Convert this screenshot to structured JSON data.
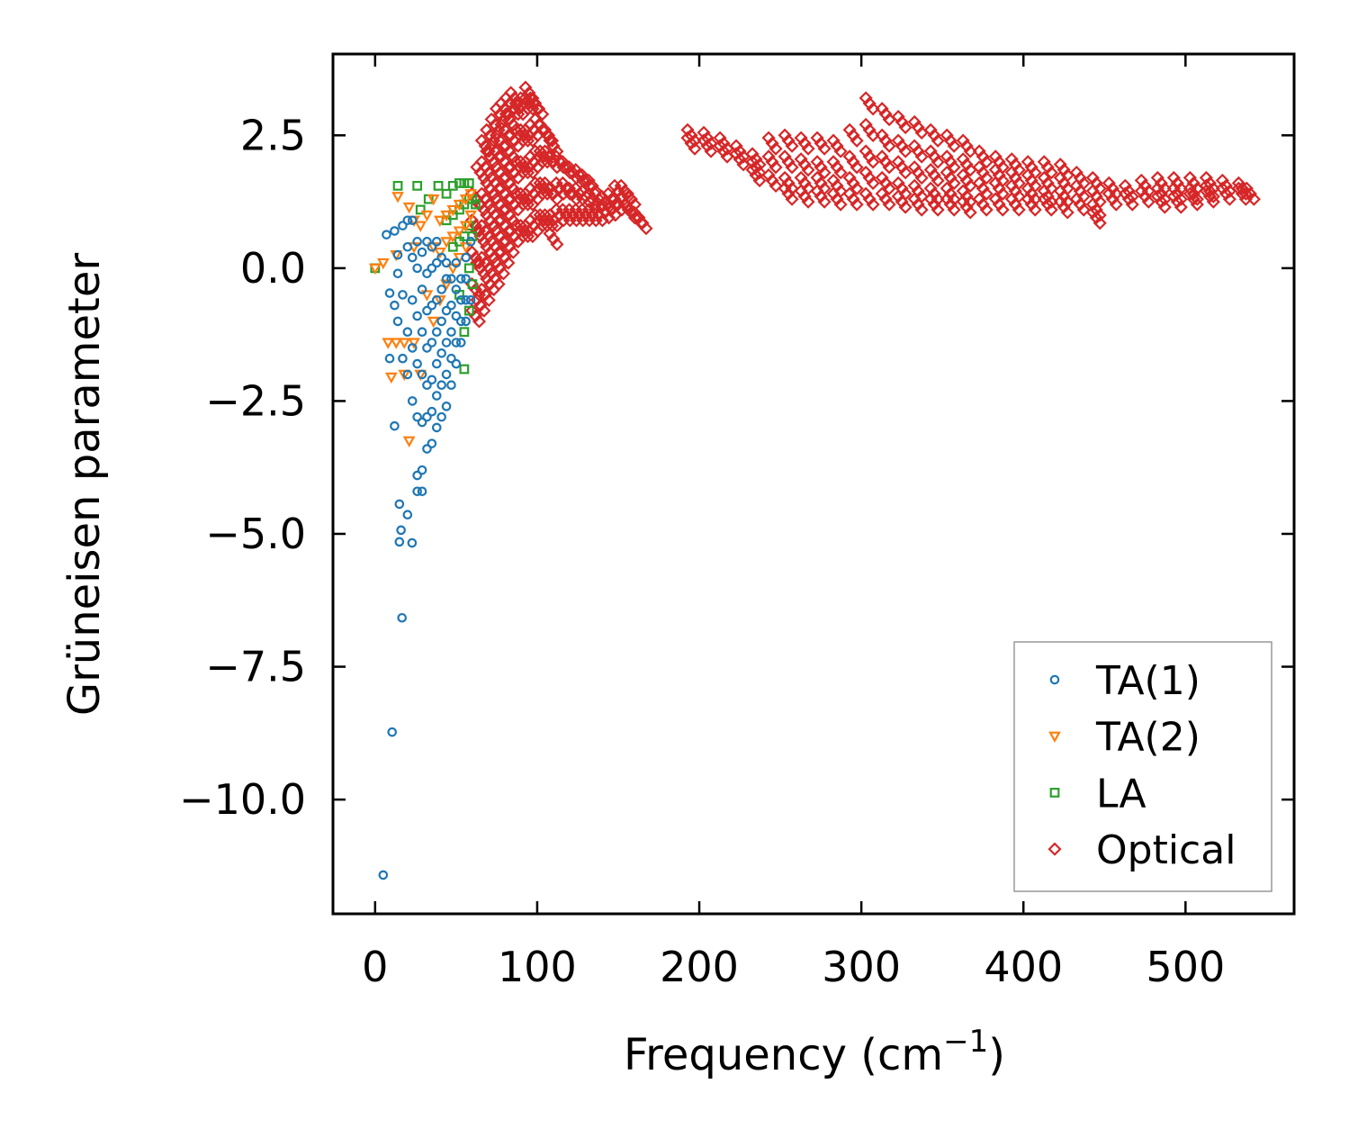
{
  "chart_data": {
    "type": "scatter",
    "title": "",
    "xlabel": "Frequency (cm",
    "xlabel_sup": "−1",
    "xlabel_end": ")",
    "ylabel": "Grüneisen parameter",
    "xlim": [
      -26,
      567
    ],
    "ylim": [
      -12.15,
      4.03
    ],
    "xticks": [
      0,
      100,
      200,
      300,
      400,
      500
    ],
    "xtick_labels": [
      "0",
      "100",
      "200",
      "300",
      "400",
      "500"
    ],
    "yticks": [
      2.5,
      0,
      -2.5,
      -5,
      -7.5,
      -10
    ],
    "ytick_labels": [
      "2.5",
      "0.0",
      "−2.5",
      "−5.0",
      "−7.5",
      "−10.0"
    ],
    "grid": false,
    "legend_placement": "lower-right",
    "series": [
      {
        "name": "TA(1)",
        "marker": "circle",
        "color": "#1f77b4",
        "groups": [
          [
            5,
            [
              -11.42
            ]
          ],
          [
            10.5,
            [
              -8.73
            ]
          ],
          [
            16.6,
            [
              -6.58
            ]
          ],
          [
            15,
            [
              -5.15,
              -4.44
            ]
          ],
          [
            16,
            [
              -4.93
            ]
          ],
          [
            20,
            [
              -4.64
            ]
          ],
          [
            22.8,
            [
              -5.17
            ]
          ],
          [
            7,
            [
              0.63
            ]
          ],
          [
            9,
            [
              -0.47,
              -1.7
            ]
          ],
          [
            12,
            [
              -2.97,
              0.7,
              -0.7
            ]
          ],
          [
            14,
            [
              -1.0,
              0.25,
              -0.1
            ]
          ],
          [
            17,
            [
              -1.7,
              -0.5,
              0.8
            ]
          ],
          [
            20,
            [
              -2.0,
              -1.2,
              0.4,
              0.9
            ]
          ],
          [
            23,
            [
              -2.5,
              -1.5,
              -0.6,
              0.2,
              0.9
            ]
          ],
          [
            26,
            [
              -4.2,
              -3.9,
              -2.8,
              -1.8,
              -0.9,
              0,
              0.5
            ]
          ],
          [
            29,
            [
              -4.2,
              -3.8,
              -2.9,
              -2.0,
              -1.2,
              -0.4,
              0.3
            ]
          ],
          [
            32,
            [
              -3.4,
              -2.8,
              -2.2,
              -1.5,
              -0.8,
              -0.1,
              0.5
            ]
          ],
          [
            35,
            [
              -3.3,
              -2.7,
              -2.1,
              -1.4,
              -0.7,
              0,
              0.4
            ]
          ],
          [
            38,
            [
              -3.0,
              -2.4,
              -1.8,
              -1.2,
              -0.6,
              0.1,
              0.5
            ]
          ],
          [
            41,
            [
              -2.8,
              -2.2,
              -1.6,
              -1.0,
              -0.4,
              0.2
            ]
          ],
          [
            44,
            [
              -2.6,
              -2.0,
              -1.4,
              -0.8,
              -0.2,
              0.1
            ]
          ],
          [
            47,
            [
              -2.2,
              -1.7,
              -1.2,
              -0.7,
              -0.2
            ]
          ],
          [
            50,
            [
              -1.8,
              -1.4,
              -0.9,
              -0.4,
              0.1
            ]
          ],
          [
            53,
            [
              -1.4,
              -1.0,
              -0.6,
              -0.2
            ]
          ],
          [
            56,
            [
              -1.0,
              -0.6,
              -0.2,
              0.2
            ]
          ],
          [
            59,
            [
              -0.6,
              0.5
            ]
          ]
        ]
      },
      {
        "name": "TA(2)",
        "marker": "triangle_down",
        "color": "#ff7f0e",
        "groups": [
          [
            0,
            [
              0
            ]
          ],
          [
            5,
            [
              0.1
            ]
          ],
          [
            8,
            [
              -1.4
            ]
          ],
          [
            10,
            [
              -2.05
            ]
          ],
          [
            13,
            [
              -1.4,
              0.25
            ]
          ],
          [
            14,
            [
              1.35
            ]
          ],
          [
            18,
            [
              -1.4,
              -2.0
            ]
          ],
          [
            21,
            [
              1.15,
              -3.25
            ]
          ],
          [
            24,
            [
              -1.4,
              0.4,
              0.9
            ]
          ],
          [
            28,
            [
              -2.0,
              0.8
            ]
          ],
          [
            32,
            [
              -0.5,
              1.0
            ]
          ],
          [
            36,
            [
              1.3,
              -1.0,
              0.4
            ]
          ],
          [
            40,
            [
              0.3,
              0.9,
              -0.6
            ]
          ],
          [
            44,
            [
              0.5,
              1.0,
              -0.3
            ]
          ],
          [
            48,
            [
              0.6,
              1.1,
              0.0
            ]
          ],
          [
            52,
            [
              0.7,
              1.2,
              0.2
            ]
          ],
          [
            56,
            [
              0.8,
              1.3,
              0.4
            ]
          ],
          [
            59,
            [
              1.0,
              1.4
            ]
          ]
        ]
      },
      {
        "name": "LA",
        "marker": "square",
        "color": "#2ca02c",
        "groups": [
          [
            0,
            [
              0
            ]
          ],
          [
            14,
            [
              1.55
            ]
          ],
          [
            26,
            [
              1.55
            ]
          ],
          [
            28,
            [
              1.1
            ]
          ],
          [
            33,
            [
              1.3
            ]
          ],
          [
            39,
            [
              1.55
            ]
          ],
          [
            44,
            [
              1.4,
              0.9
            ]
          ],
          [
            48,
            [
              1.55,
              1.0,
              0.4
            ]
          ],
          [
            52,
            [
              1.6,
              1.1,
              0.5,
              -0.5
            ]
          ],
          [
            55,
            [
              1.6,
              1.2,
              0.6,
              -1.9,
              -1.2
            ]
          ],
          [
            58,
            [
              1.6,
              1.3,
              0.8,
              0,
              -0.8
            ]
          ],
          [
            60,
            [
              1.3,
              0.6,
              -0.3
            ]
          ],
          [
            62,
            [
              1.2
            ]
          ]
        ]
      },
      {
        "name": "Optical",
        "marker": "diamond",
        "color": "#d62728",
        "groups": [
          [
            62,
            [
              -0.9,
              -0.4,
              0.2,
              0.8,
              1.3
            ]
          ],
          [
            65,
            [
              -0.7,
              0,
              0.6,
              1.2,
              1.8
            ]
          ],
          [
            68,
            [
              -0.5,
              0.1,
              0.7,
              1.3,
              1.9,
              2.3
            ]
          ],
          [
            71,
            [
              -0.3,
              0.3,
              0.9,
              1.5,
              2.1,
              2.5
            ]
          ],
          [
            74,
            [
              -0.2,
              0.4,
              1.0,
              1.6,
              2.2,
              2.7
            ]
          ],
          [
            77,
            [
              0,
              0.6,
              1.2,
              1.8,
              2.4,
              2.9
            ]
          ],
          [
            80,
            [
              0.2,
              0.8,
              1.4,
              2.0,
              2.6,
              3.0
            ]
          ],
          [
            83,
            [
              0.4,
              1.0,
              1.6,
              2.2,
              2.8,
              3.1
            ]
          ],
          [
            86,
            [
              0.6,
              1.2,
              1.8,
              2.4,
              3.0,
              3.2
            ]
          ],
          [
            89,
            [
              0.7,
              1.3,
              1.9,
              2.5,
              3.0
            ]
          ],
          [
            92,
            [
              0.7,
              1.3,
              1.9,
              2.5,
              3.1
            ]
          ],
          [
            95,
            [
              0.7,
              1.3,
              1.9,
              2.5,
              3.1,
              3.3
            ]
          ],
          [
            98,
            [
              0.8,
              1.4,
              2.0,
              2.6,
              3.1
            ]
          ],
          [
            101,
            [
              0.9,
              1.5,
              2.1,
              2.7,
              3.0
            ]
          ],
          [
            104,
            [
              0.9,
              1.5,
              2.1,
              2.6
            ]
          ],
          [
            107,
            [
              0.9,
              1.5,
              2.1,
              2.5
            ]
          ],
          [
            110,
            [
              0.55,
              0.9,
              1.4,
              2.0,
              2.3
            ]
          ],
          [
            114,
            [
              1.0,
              1.5,
              2.0
            ]
          ],
          [
            118,
            [
              1.0,
              1.5,
              1.9
            ]
          ],
          [
            122,
            [
              1.0,
              1.4,
              1.8
            ]
          ],
          [
            126,
            [
              1.0,
              1.4,
              1.75
            ]
          ],
          [
            130,
            [
              1.0,
              1.35,
              1.65
            ]
          ],
          [
            134,
            [
              1.0,
              1.3,
              1.55
            ]
          ],
          [
            138,
            [
              1.0,
              1.3
            ]
          ],
          [
            142,
            [
              1.05,
              1.25
            ]
          ],
          [
            146,
            [
              1.1,
              1.3
            ]
          ],
          [
            150,
            [
              1.2,
              1.45
            ]
          ],
          [
            154,
            [
              1.2,
              1.45
            ]
          ],
          [
            158,
            [
              1.05,
              1.3
            ]
          ],
          [
            162,
            [
              0.95
            ]
          ],
          [
            165,
            [
              0.85
            ]
          ],
          [
            195,
            [
              2.5,
              2.35
            ]
          ],
          [
            205,
            [
              2.45,
              2.3
            ]
          ],
          [
            215,
            [
              2.35,
              2.2
            ]
          ],
          [
            225,
            [
              2.2,
              2.05
            ]
          ],
          [
            235,
            [
              2.05,
              1.9,
              1.75
            ]
          ],
          [
            245,
            [
              2.35,
              2.0,
              1.65
            ]
          ],
          [
            255,
            [
              2.4,
              2.0,
              1.6,
              1.4
            ]
          ],
          [
            265,
            [
              2.35,
              1.95,
              1.6,
              1.35
            ]
          ],
          [
            275,
            [
              2.35,
              1.9,
              1.6,
              1.35
            ]
          ],
          [
            285,
            [
              2.3,
              1.9,
              1.55,
              1.3
            ]
          ],
          [
            295,
            [
              2.5,
              2.0,
              1.6,
              1.3
            ]
          ],
          [
            305,
            [
              3.1,
              2.6,
              2.1,
              1.7,
              1.3
            ]
          ],
          [
            315,
            [
              2.9,
              2.4,
              2.0,
              1.6,
              1.3
            ]
          ],
          [
            325,
            [
              2.75,
              2.3,
              1.9,
              1.5,
              1.25
            ]
          ],
          [
            335,
            [
              2.65,
              2.2,
              1.8,
              1.45,
              1.2
            ]
          ],
          [
            345,
            [
              2.5,
              2.1,
              1.75,
              1.4,
              1.2
            ]
          ],
          [
            355,
            [
              2.4,
              2.0,
              1.7,
              1.4,
              1.2
            ]
          ],
          [
            365,
            [
              2.3,
              1.95,
              1.65,
              1.35,
              1.15
            ]
          ],
          [
            375,
            [
              2.1,
              1.8,
              1.5,
              1.2
            ]
          ],
          [
            385,
            [
              2.0,
              1.75,
              1.5,
              1.2
            ]
          ],
          [
            395,
            [
              1.95,
              1.7,
              1.45,
              1.2
            ]
          ],
          [
            405,
            [
              1.9,
              1.65,
              1.4,
              1.2
            ]
          ],
          [
            415,
            [
              1.9,
              1.6,
              1.35,
              1.2
            ]
          ],
          [
            425,
            [
              1.85,
              1.6,
              1.35,
              1.15
            ]
          ],
          [
            435,
            [
              1.7,
              1.45,
              1.2
            ]
          ],
          [
            445,
            [
              1.6,
              1.35,
              1.1,
              0.95
            ]
          ],
          [
            455,
            [
              1.5,
              1.3
            ]
          ],
          [
            465,
            [
              1.45,
              1.3
            ]
          ],
          [
            475,
            [
              1.55,
              1.35
            ]
          ],
          [
            485,
            [
              1.6,
              1.4,
              1.25
            ]
          ],
          [
            495,
            [
              1.6,
              1.4,
              1.25
            ]
          ],
          [
            505,
            [
              1.6,
              1.4,
              1.3
            ]
          ],
          [
            515,
            [
              1.6,
              1.45,
              1.35
            ]
          ],
          [
            525,
            [
              1.55,
              1.4
            ]
          ],
          [
            535,
            [
              1.5,
              1.4
            ]
          ],
          [
            540,
            [
              1.4
            ]
          ]
        ]
      }
    ],
    "draw_order": [
      3,
      2,
      1,
      0
    ]
  }
}
